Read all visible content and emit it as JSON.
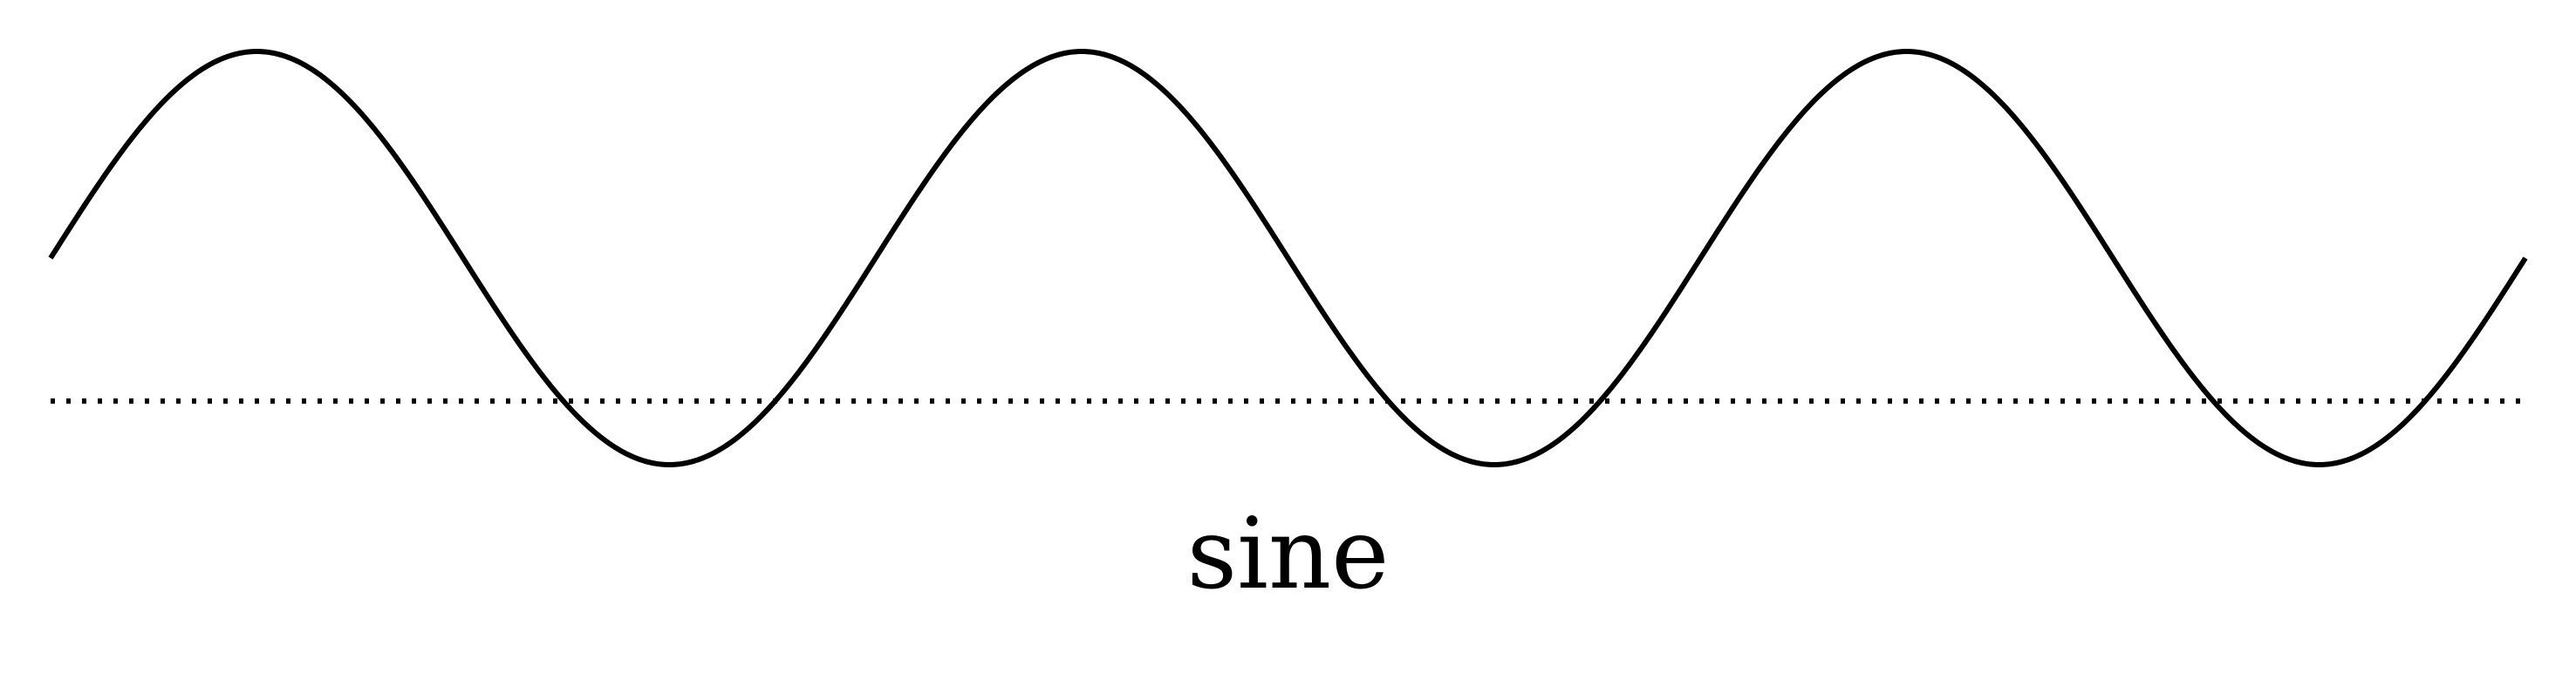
{
  "diagram": {
    "label": "sine",
    "cycles": 3,
    "phase_start": "mid-rising",
    "curve_color": "#000000",
    "baseline_color": "#000000",
    "baseline_style": "dotted",
    "background": "#ffffff"
  }
}
